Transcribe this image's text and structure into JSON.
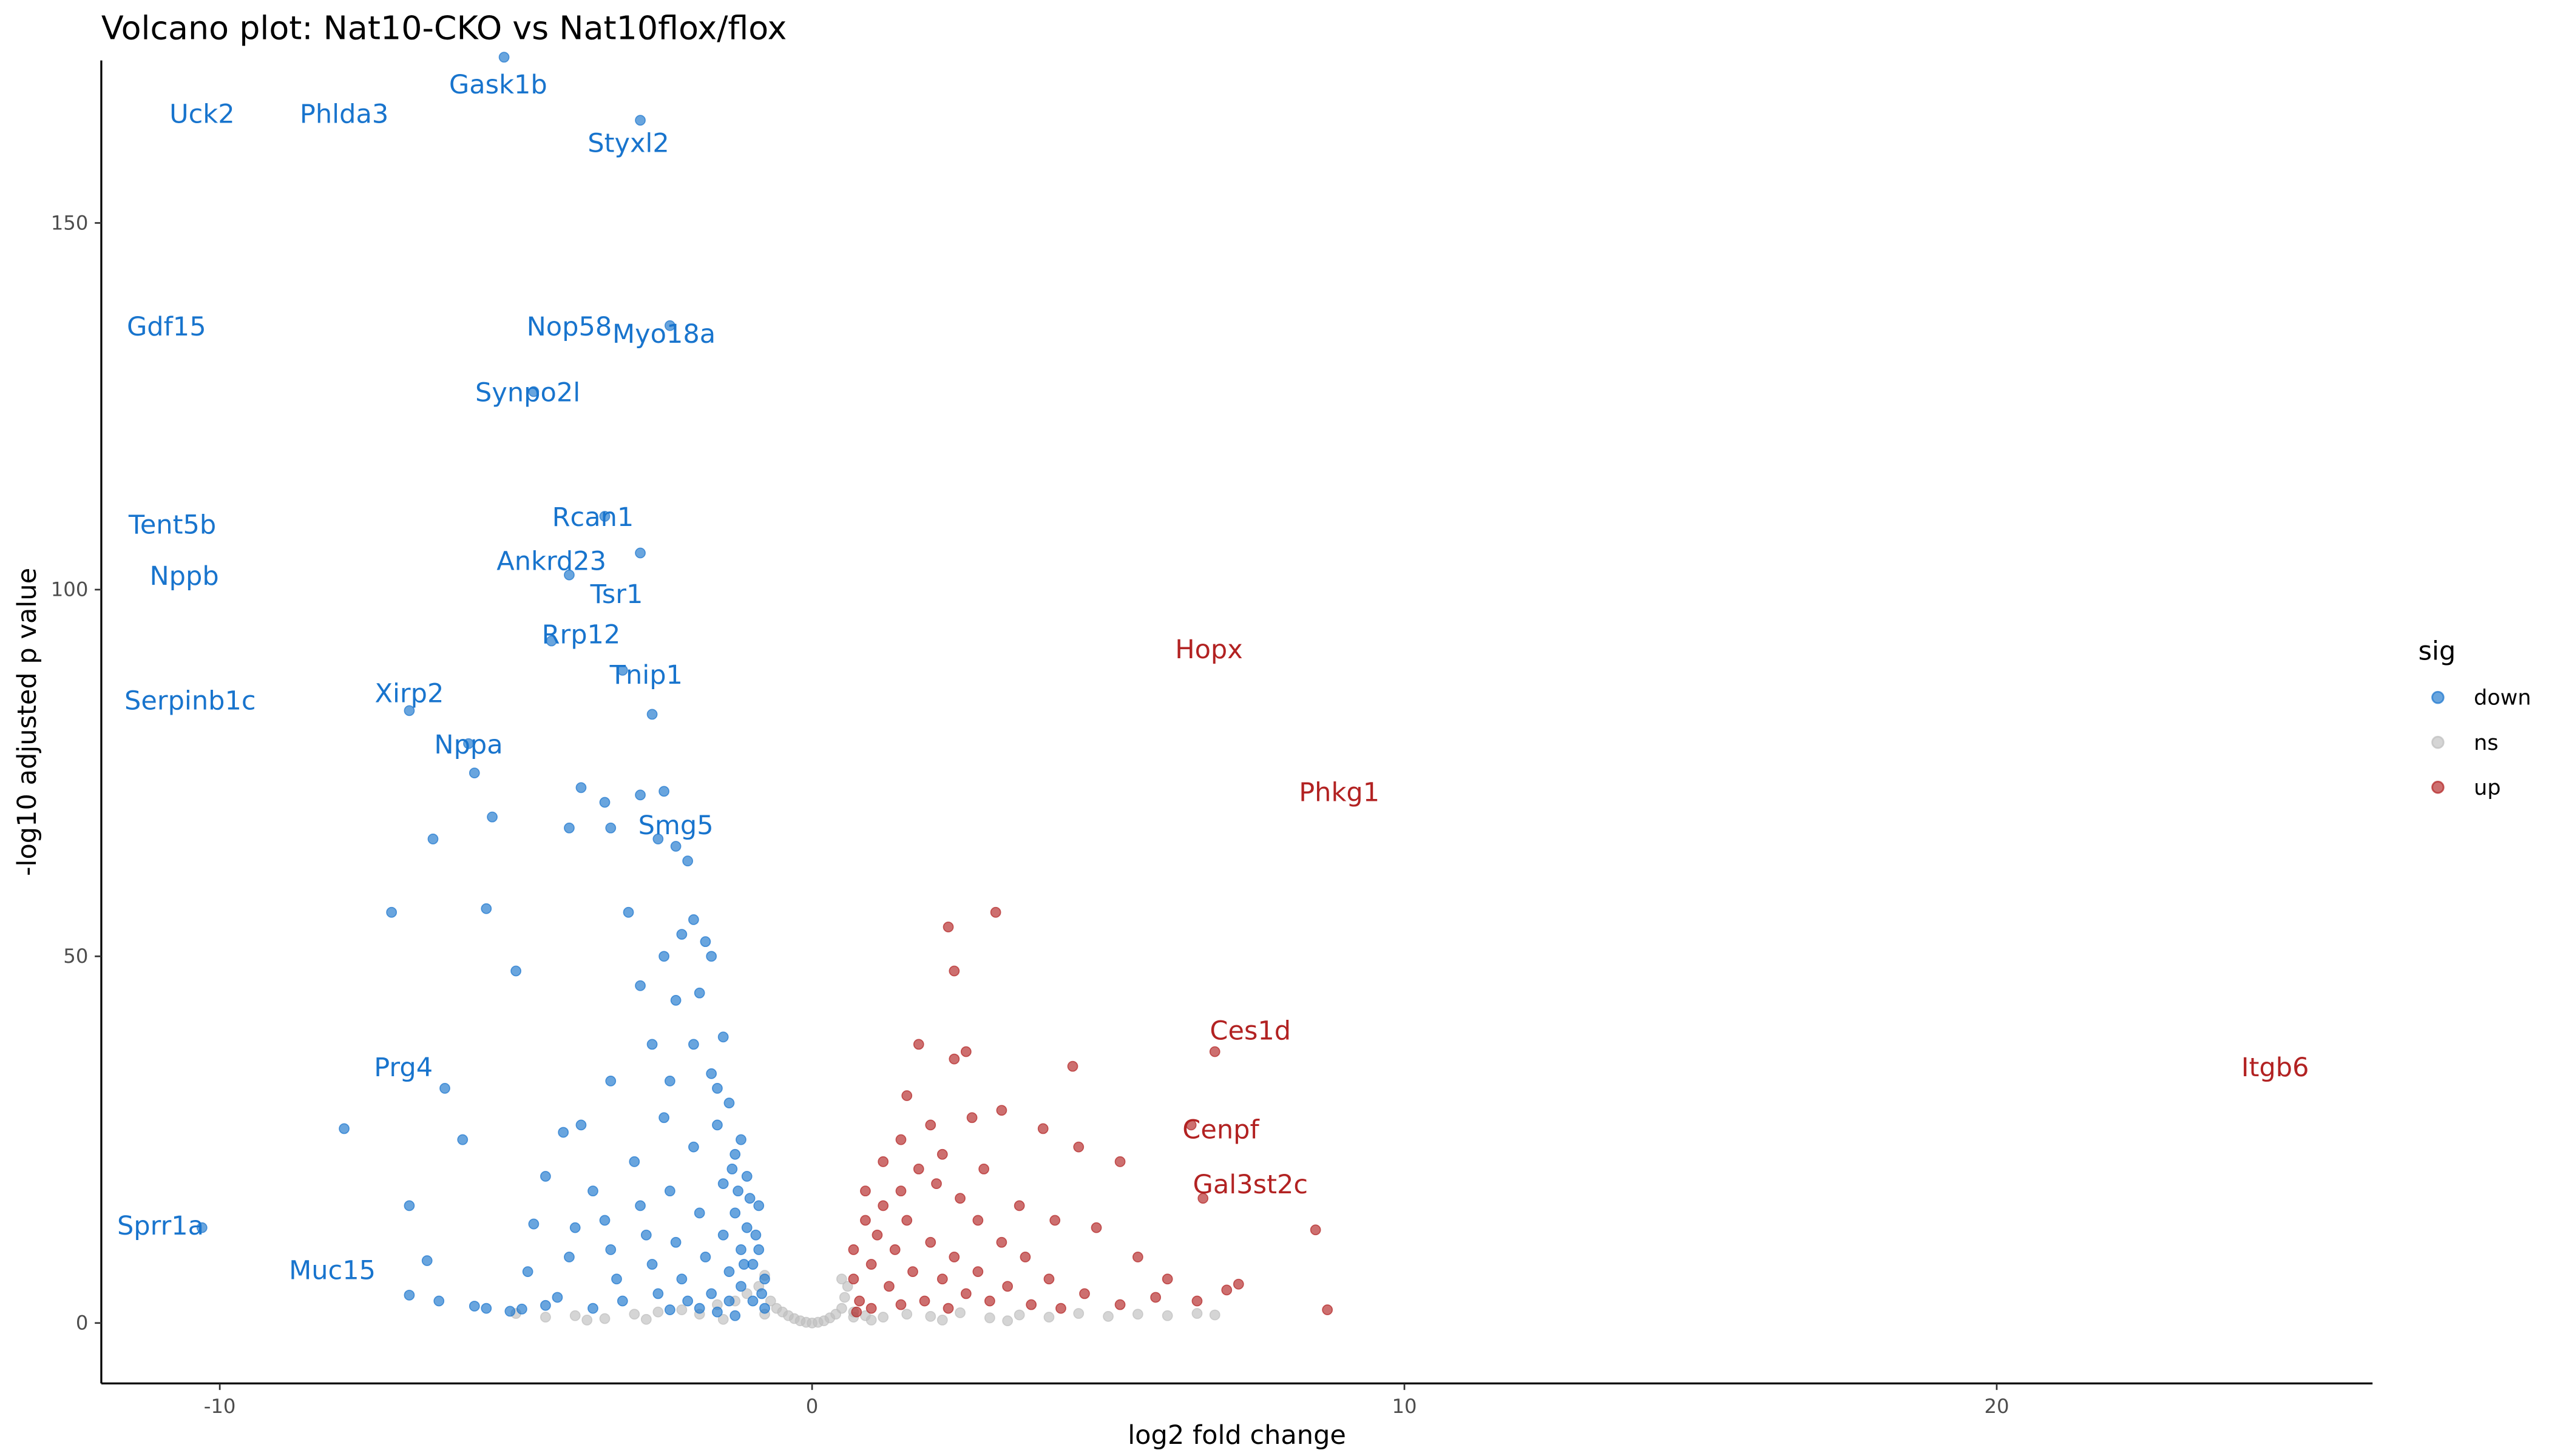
{
  "chart_data": {
    "type": "scatter",
    "title": "Volcano plot: Nat10-CKO vs Nat10flox/flox",
    "xlabel": "log2 fold change",
    "ylabel": "-log10 adjusted p value",
    "xlim": [
      -12,
      26.4
    ],
    "ylim": [
      -8,
      172
    ],
    "xticks": [
      -10,
      0,
      10,
      20
    ],
    "yticks": [
      0,
      50,
      100,
      150
    ],
    "grid": false,
    "legend": {
      "title": "sig",
      "position": "right",
      "entries": [
        "down",
        "ns",
        "up"
      ]
    },
    "colors": {
      "down": "#1874CD",
      "ns": "#BEBEBE",
      "up": "#B22222"
    },
    "series": [
      {
        "name": "ns",
        "points": [
          [
            -4.5,
            0.8
          ],
          [
            -4,
            1
          ],
          [
            -3.5,
            0.6
          ],
          [
            -3,
            1.2
          ],
          [
            -2.6,
            1.5
          ],
          [
            -2.2,
            1.8
          ],
          [
            -1.9,
            1.2
          ],
          [
            -1.6,
            2.5
          ],
          [
            -1.3,
            3
          ],
          [
            -1.1,
            4
          ],
          [
            -0.9,
            5
          ],
          [
            -0.8,
            6.5
          ],
          [
            -0.7,
            3
          ],
          [
            -0.6,
            2
          ],
          [
            -0.5,
            1.5
          ],
          [
            -0.4,
            1
          ],
          [
            -0.3,
            0.6
          ],
          [
            -0.2,
            0.3
          ],
          [
            -0.1,
            0.1
          ],
          [
            0,
            0
          ],
          [
            0.1,
            0.1
          ],
          [
            0.2,
            0.3
          ],
          [
            0.3,
            0.7
          ],
          [
            0.4,
            1.2
          ],
          [
            0.5,
            2
          ],
          [
            0.55,
            3.5
          ],
          [
            0.6,
            5
          ],
          [
            0.5,
            6
          ],
          [
            0.7,
            1.5
          ],
          [
            0.9,
            1
          ],
          [
            1.2,
            0.8
          ],
          [
            1.6,
            1.2
          ],
          [
            2,
            0.9
          ],
          [
            2.5,
            1.4
          ],
          [
            3,
            0.7
          ],
          [
            3.5,
            1.1
          ],
          [
            4,
            0.8
          ],
          [
            4.5,
            1.3
          ],
          [
            5,
            0.9
          ],
          [
            5.5,
            1.2
          ],
          [
            6,
            1
          ],
          [
            6.5,
            1.3
          ],
          [
            6.8,
            1.1
          ],
          [
            -5,
            1.3
          ],
          [
            -3.8,
            0.4
          ],
          [
            -2.8,
            0.5
          ],
          [
            -1.5,
            0.5
          ],
          [
            1,
            0.4
          ],
          [
            2.2,
            0.4
          ],
          [
            3.3,
            0.3
          ],
          [
            -0.8,
            1.2
          ],
          [
            0.7,
            0.8
          ]
        ]
      },
      {
        "name": "down",
        "points": [
          [
            -5.2,
            172.6
          ],
          [
            -2.9,
            164
          ],
          [
            -2.4,
            136
          ],
          [
            -4.7,
            127
          ],
          [
            -3.5,
            110
          ],
          [
            -2.9,
            105
          ],
          [
            -4.1,
            102
          ],
          [
            -4.4,
            93
          ],
          [
            -3.2,
            89
          ],
          [
            -6.8,
            83.5
          ],
          [
            -2.7,
            83
          ],
          [
            -5.8,
            79
          ],
          [
            -5.7,
            75
          ],
          [
            -3.9,
            73
          ],
          [
            -3.5,
            71
          ],
          [
            -2.9,
            72
          ],
          [
            -2.5,
            72.5
          ],
          [
            -5.4,
            69
          ],
          [
            -4.1,
            67.5
          ],
          [
            -3.4,
            67.5
          ],
          [
            -6.4,
            66
          ],
          [
            -2.6,
            66
          ],
          [
            -2.3,
            65
          ],
          [
            -2.1,
            63
          ],
          [
            -7.1,
            56
          ],
          [
            -5.5,
            56.5
          ],
          [
            -3.1,
            56
          ],
          [
            -2,
            55
          ],
          [
            -2.2,
            53
          ],
          [
            -1.8,
            52
          ],
          [
            -1.7,
            50
          ],
          [
            -2.5,
            50
          ],
          [
            -2.9,
            46
          ],
          [
            -5,
            48
          ],
          [
            -1.9,
            45
          ],
          [
            -2.3,
            44
          ],
          [
            -1.5,
            39
          ],
          [
            -2,
            38
          ],
          [
            -2.7,
            38
          ],
          [
            -3.4,
            33
          ],
          [
            -2.4,
            33
          ],
          [
            -1.6,
            32
          ],
          [
            -7.9,
            26.5
          ],
          [
            -6.2,
            32
          ],
          [
            -6.8,
            16
          ],
          [
            -5.9,
            25
          ],
          [
            -6.5,
            8.5
          ],
          [
            -6.8,
            3.8
          ],
          [
            -6.3,
            3
          ],
          [
            -5.7,
            2.3
          ],
          [
            -5.5,
            2
          ],
          [
            -5.1,
            1.6
          ],
          [
            -4.9,
            1.9
          ],
          [
            -4.5,
            2.4
          ],
          [
            -4.3,
            3.5
          ],
          [
            -4.8,
            7
          ],
          [
            -4.1,
            9
          ],
          [
            -4,
            13
          ],
          [
            -4.7,
            13.5
          ],
          [
            -4.5,
            20
          ],
          [
            -4.2,
            26
          ],
          [
            -3.9,
            27
          ],
          [
            -3.7,
            18
          ],
          [
            -3.5,
            14
          ],
          [
            -3.4,
            10
          ],
          [
            -3.3,
            6
          ],
          [
            -3.2,
            3
          ],
          [
            -3,
            22
          ],
          [
            -2.9,
            16
          ],
          [
            -2.8,
            12
          ],
          [
            -2.7,
            8
          ],
          [
            -2.6,
            4
          ],
          [
            -2.5,
            28
          ],
          [
            -2.4,
            18
          ],
          [
            -2.3,
            11
          ],
          [
            -2.2,
            6
          ],
          [
            -2.1,
            3
          ],
          [
            -2,
            24
          ],
          [
            -1.9,
            15
          ],
          [
            -1.8,
            9
          ],
          [
            -1.7,
            4
          ],
          [
            -1.6,
            27
          ],
          [
            -1.5,
            19
          ],
          [
            -1.5,
            12
          ],
          [
            -1.4,
            7
          ],
          [
            -1.4,
            3
          ],
          [
            -1.3,
            23
          ],
          [
            -1.3,
            15
          ],
          [
            -1.2,
            10
          ],
          [
            -1.2,
            5
          ],
          [
            -1.1,
            20
          ],
          [
            -1.1,
            13
          ],
          [
            -1,
            8
          ],
          [
            -1,
            3
          ],
          [
            -0.9,
            16
          ],
          [
            -0.9,
            10
          ],
          [
            -0.8,
            6
          ],
          [
            -0.8,
            2
          ],
          [
            -1.6,
            1.5
          ],
          [
            -1.9,
            2
          ],
          [
            -2.4,
            1.8
          ],
          [
            -3.7,
            2
          ],
          [
            -1.2,
            25
          ],
          [
            -1.4,
            30
          ],
          [
            -1.7,
            34
          ],
          [
            -1.3,
            1
          ],
          [
            -1.05,
            17
          ],
          [
            -0.95,
            12
          ],
          [
            -1.15,
            8
          ],
          [
            -1.25,
            18
          ],
          [
            -1.35,
            21
          ],
          [
            -0.85,
            4
          ],
          [
            -10.3,
            13
          ]
        ]
      },
      {
        "name": "up",
        "points": [
          [
            2.3,
            54
          ],
          [
            3.1,
            56
          ],
          [
            2.4,
            48
          ],
          [
            4.4,
            35
          ],
          [
            2.6,
            37
          ],
          [
            2.4,
            36
          ],
          [
            1.8,
            38
          ],
          [
            1.6,
            31
          ],
          [
            5.2,
            22
          ],
          [
            4.5,
            24
          ],
          [
            3.9,
            26.5
          ],
          [
            8.5,
            12.7
          ],
          [
            8.7,
            1.8
          ],
          [
            7.2,
            5.3
          ],
          [
            7.0,
            4.5
          ],
          [
            6.8,
            37
          ],
          [
            6.4,
            27
          ],
          [
            6.6,
            17
          ],
          [
            2.7,
            28
          ],
          [
            3.2,
            29
          ],
          [
            2.0,
            27
          ],
          [
            1.5,
            25
          ],
          [
            2.2,
            23
          ],
          [
            2.9,
            21
          ],
          [
            3.5,
            16
          ],
          [
            4.1,
            14
          ],
          [
            4.8,
            13
          ],
          [
            5.5,
            9
          ],
          [
            6.0,
            6
          ],
          [
            6.5,
            3
          ],
          [
            5.8,
            3.5
          ],
          [
            5.2,
            2.5
          ],
          [
            4.6,
            4
          ],
          [
            4.0,
            6
          ],
          [
            3.6,
            9
          ],
          [
            3.2,
            11
          ],
          [
            2.8,
            14
          ],
          [
            2.5,
            17
          ],
          [
            2.1,
            19
          ],
          [
            1.8,
            21
          ],
          [
            1.5,
            18
          ],
          [
            1.2,
            16
          ],
          [
            0.9,
            14
          ],
          [
            0.7,
            10
          ],
          [
            0.7,
            6
          ],
          [
            0.8,
            3
          ],
          [
            1.0,
            8
          ],
          [
            1.1,
            12
          ],
          [
            1.3,
            5
          ],
          [
            1.4,
            10
          ],
          [
            1.6,
            14
          ],
          [
            1.7,
            7
          ],
          [
            1.9,
            3
          ],
          [
            2.0,
            11
          ],
          [
            2.2,
            6
          ],
          [
            2.4,
            9
          ],
          [
            2.6,
            4
          ],
          [
            2.8,
            7
          ],
          [
            3.0,
            3
          ],
          [
            3.3,
            5
          ],
          [
            3.7,
            2.5
          ],
          [
            4.2,
            2
          ],
          [
            0.9,
            18
          ],
          [
            1.2,
            22
          ],
          [
            1.0,
            2
          ],
          [
            1.5,
            2.5
          ],
          [
            2.3,
            2
          ],
          [
            0.75,
            1.5
          ]
        ]
      }
    ],
    "labels": [
      {
        "gene": "Uck2",
        "x": -10.3,
        "y": 165,
        "sig": "down"
      },
      {
        "gene": "Phlda3",
        "x": -7.9,
        "y": 165,
        "sig": "down"
      },
      {
        "gene": "Gask1b",
        "x": -5.3,
        "y": 169,
        "sig": "down"
      },
      {
        "gene": "Styxl2",
        "x": -3.1,
        "y": 161,
        "sig": "down"
      },
      {
        "gene": "Gdf15",
        "x": -10.9,
        "y": 136,
        "sig": "down"
      },
      {
        "gene": "Nop58",
        "x": -4.1,
        "y": 136,
        "sig": "down"
      },
      {
        "gene": "Myo18a",
        "x": -2.5,
        "y": 135,
        "sig": "down"
      },
      {
        "gene": "Synpo2l",
        "x": -4.8,
        "y": 127,
        "sig": "down"
      },
      {
        "gene": "Rcan1",
        "x": -3.7,
        "y": 110,
        "sig": "down"
      },
      {
        "gene": "Tent5b",
        "x": -10.8,
        "y": 109,
        "sig": "down"
      },
      {
        "gene": "Nppb",
        "x": -10.6,
        "y": 102,
        "sig": "down"
      },
      {
        "gene": "Ankrd23",
        "x": -4.4,
        "y": 104,
        "sig": "down"
      },
      {
        "gene": "Tsr1",
        "x": -3.3,
        "y": 99.5,
        "sig": "down"
      },
      {
        "gene": "Rrp12",
        "x": -3.9,
        "y": 94,
        "sig": "down"
      },
      {
        "gene": "Tnip1",
        "x": -2.8,
        "y": 88.5,
        "sig": "down"
      },
      {
        "gene": "Serpinb1c",
        "x": -10.5,
        "y": 85,
        "sig": "down"
      },
      {
        "gene": "Xirp2",
        "x": -6.8,
        "y": 86,
        "sig": "down"
      },
      {
        "gene": "Nppa",
        "x": -5.8,
        "y": 79,
        "sig": "down"
      },
      {
        "gene": "Smg5",
        "x": -2.3,
        "y": 68,
        "sig": "down"
      },
      {
        "gene": "Prg4",
        "x": -6.9,
        "y": 35,
        "sig": "down"
      },
      {
        "gene": "Sprr1a",
        "x": -11.0,
        "y": 13.4,
        "sig": "down"
      },
      {
        "gene": "Muc15",
        "x": -8.1,
        "y": 7.3,
        "sig": "down"
      },
      {
        "gene": "Hopx",
        "x": 6.7,
        "y": 92,
        "sig": "up"
      },
      {
        "gene": "Phkg1",
        "x": 8.9,
        "y": 72.5,
        "sig": "up"
      },
      {
        "gene": "Ces1d",
        "x": 7.4,
        "y": 40,
        "sig": "up"
      },
      {
        "gene": "Itgb6",
        "x": 24.7,
        "y": 35,
        "sig": "up"
      },
      {
        "gene": "Cenpf",
        "x": 6.9,
        "y": 26.5,
        "sig": "up"
      },
      {
        "gene": "Gal3st2c",
        "x": 7.4,
        "y": 19,
        "sig": "up"
      }
    ]
  }
}
